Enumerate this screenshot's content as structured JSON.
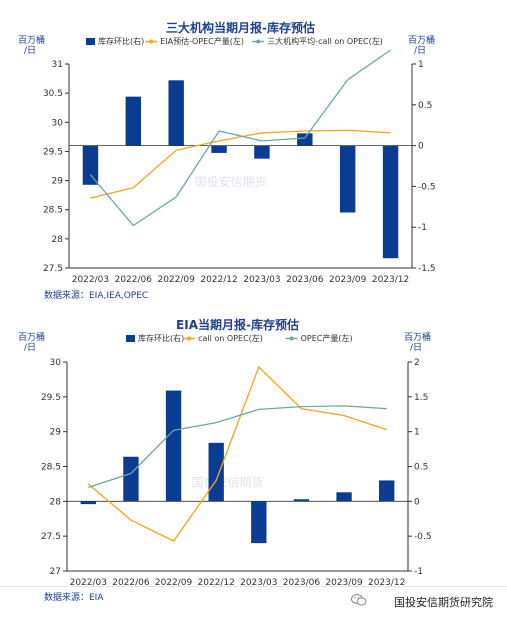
{
  "footer": {
    "account_label": "国投安信期货研究院",
    "icon": "wechat-icon"
  },
  "colors": {
    "bar": "#0a3d91",
    "orange": "#f2a51a",
    "teal": "#6fa6a8",
    "title": "#1f3f8f"
  },
  "charts": [
    {
      "id": "panel-1",
      "title": "三大机构当期月报-库存预估",
      "left_unit": "百万桶/日",
      "right_unit": "百万桶/日",
      "source": "数据来源：EIA,IEA,OPEC",
      "watermark": "国投安信期货"
    },
    {
      "id": "panel-2",
      "title": "EIA当期月报-库存预估",
      "left_unit": "百万桶/日",
      "right_unit": "百万桶/日",
      "source": "数据来源：EIA",
      "watermark": "国投安信期货"
    }
  ],
  "chart_data": [
    {
      "type": "bar",
      "title": "三大机构当期月报-库存预估",
      "categories": [
        "2022/03",
        "2022/06",
        "2022/09",
        "2022/12",
        "2023/03",
        "2023/06",
        "2023/09",
        "2023/12"
      ],
      "left_axis": {
        "label": "百万桶/日",
        "ylim": [
          27.5,
          31
        ],
        "ticks": [
          27.5,
          28,
          28.5,
          29,
          29.5,
          30,
          30.5,
          31
        ]
      },
      "right_axis": {
        "label": "百万桶/日",
        "ylim": [
          -1.5,
          1
        ],
        "ticks": [
          -1.5,
          -1,
          -0.5,
          0,
          0.5,
          1
        ]
      },
      "x_tick_labels": [
        "2022/03",
        "2022/06",
        "2022/09",
        "2022/12",
        "2023/03",
        "2023/06",
        "2023/09",
        "2023/12"
      ],
      "legend_position": "top",
      "series": [
        {
          "name": "库存环比(右)",
          "kind": "bar",
          "axis": "right",
          "color": "#0a3d91",
          "values": [
            -0.48,
            0.6,
            0.8,
            -0.09,
            -0.16,
            0.15,
            -0.82,
            -1.38
          ]
        },
        {
          "name": "EIA预估-OPEC产量(左)",
          "kind": "line",
          "axis": "left",
          "color": "#f2a51a",
          "values": [
            28.7,
            28.88,
            29.52,
            29.68,
            29.82,
            29.85,
            29.86,
            29.82
          ]
        },
        {
          "name": "三大机构平均-call on OPEC(左)",
          "kind": "line",
          "axis": "left",
          "color": "#6fa6a8",
          "values": [
            29.1,
            28.23,
            28.72,
            29.85,
            29.68,
            29.73,
            30.73,
            31.24
          ]
        }
      ]
    },
    {
      "type": "bar",
      "title": "EIA当期月报-库存预估",
      "categories": [
        "2022/03",
        "2022/06",
        "2022/09",
        "2022/12",
        "2023/03",
        "2023/06",
        "2023/09",
        "2023/12"
      ],
      "left_axis": {
        "label": "百万桶/日",
        "ylim": [
          27,
          30
        ],
        "ticks": [
          27,
          27.5,
          28,
          28.5,
          29,
          29.5,
          30
        ]
      },
      "right_axis": {
        "label": "百万桶/日",
        "ylim": [
          -1,
          2
        ],
        "ticks": [
          -1,
          -0.5,
          0,
          0.5,
          1,
          1.5,
          2
        ]
      },
      "x_tick_labels": [
        "2022/03",
        "2022/06",
        "2022/09",
        "2022/12",
        "2023/03",
        "2023/06",
        "2023/09",
        "2023/12"
      ],
      "legend_position": "top",
      "series": [
        {
          "name": "库存环比(右)",
          "kind": "bar",
          "axis": "right",
          "color": "#0a3d91",
          "values": [
            -0.04,
            0.64,
            1.59,
            0.84,
            -0.6,
            0.03,
            0.13,
            0.3
          ]
        },
        {
          "name": "call on OPEC(左)",
          "kind": "line",
          "axis": "left",
          "color": "#f2a51a",
          "values": [
            28.25,
            27.73,
            27.43,
            28.3,
            29.93,
            29.33,
            29.23,
            29.03
          ]
        },
        {
          "name": "OPEC产量(左)",
          "kind": "line",
          "axis": "left",
          "color": "#6fa6a8",
          "values": [
            28.2,
            28.4,
            29.02,
            29.13,
            29.32,
            29.36,
            29.37,
            29.33
          ]
        }
      ]
    }
  ]
}
